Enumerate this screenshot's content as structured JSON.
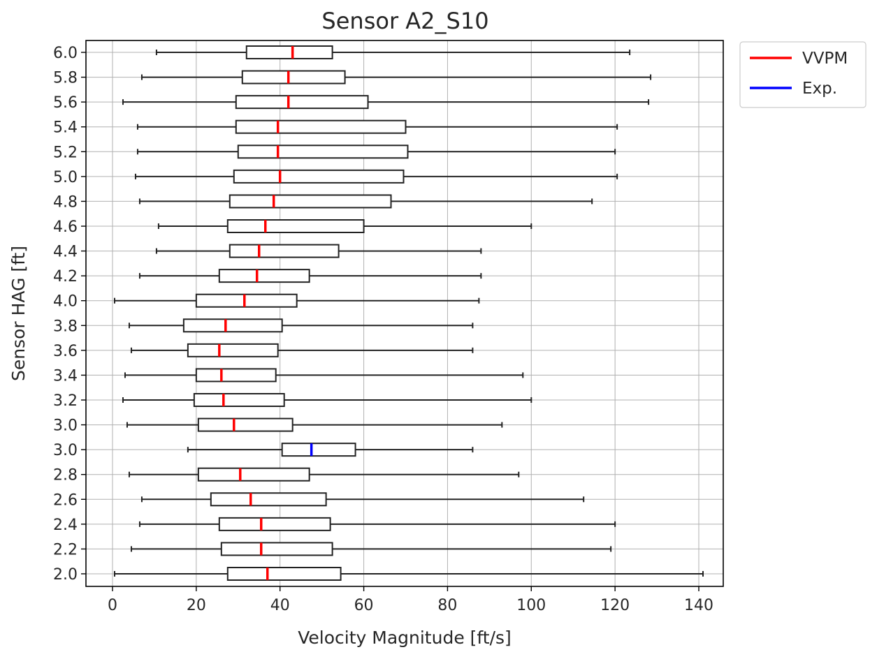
{
  "chart_data": {
    "type": "boxplot",
    "orientation": "horizontal",
    "title": "Sensor A2_S10",
    "xlabel": "Velocity Magnitude [ft/s]",
    "ylabel": "Sensor HAG [ft]",
    "xlim": [
      -7,
      148
    ],
    "x_ticks": [
      0,
      20,
      40,
      60,
      80,
      100,
      120,
      140
    ],
    "grid": true,
    "legend": {
      "placement": "outside-top-right",
      "entries": [
        {
          "name": "VVPM",
          "color": "#ff0000"
        },
        {
          "name": "Exp.",
          "color": "#0000ff"
        }
      ]
    },
    "categories": [
      "6.0",
      "5.8",
      "5.6",
      "5.4",
      "5.2",
      "5.0",
      "4.8",
      "4.6",
      "4.4",
      "4.2",
      "4.0",
      "3.8",
      "3.6",
      "3.4",
      "3.2",
      "3.0",
      "3.0",
      "2.8",
      "2.6",
      "2.4",
      "2.2",
      "2.0"
    ],
    "boxes": [
      {
        "label": "6.0",
        "series": "VVPM",
        "whisker_low": 10.5,
        "q1": 32.0,
        "median": 43.0,
        "q3": 52.5,
        "whisker_high": 123.5
      },
      {
        "label": "5.8",
        "series": "VVPM",
        "whisker_low": 7.0,
        "q1": 31.0,
        "median": 42.0,
        "q3": 55.5,
        "whisker_high": 128.5
      },
      {
        "label": "5.6",
        "series": "VVPM",
        "whisker_low": 2.5,
        "q1": 29.5,
        "median": 42.0,
        "q3": 61.0,
        "whisker_high": 128.0
      },
      {
        "label": "5.4",
        "series": "VVPM",
        "whisker_low": 6.0,
        "q1": 29.5,
        "median": 39.5,
        "q3": 70.0,
        "whisker_high": 120.5
      },
      {
        "label": "5.2",
        "series": "VVPM",
        "whisker_low": 6.0,
        "q1": 30.0,
        "median": 39.5,
        "q3": 70.5,
        "whisker_high": 120.0
      },
      {
        "label": "5.0",
        "series": "VVPM",
        "whisker_low": 5.5,
        "q1": 29.0,
        "median": 40.0,
        "q3": 69.5,
        "whisker_high": 120.5
      },
      {
        "label": "4.8",
        "series": "VVPM",
        "whisker_low": 6.5,
        "q1": 28.0,
        "median": 38.5,
        "q3": 66.5,
        "whisker_high": 114.5
      },
      {
        "label": "4.6",
        "series": "VVPM",
        "whisker_low": 11.0,
        "q1": 27.5,
        "median": 36.5,
        "q3": 60.0,
        "whisker_high": 100.0
      },
      {
        "label": "4.4",
        "series": "VVPM",
        "whisker_low": 10.5,
        "q1": 28.0,
        "median": 35.0,
        "q3": 54.0,
        "whisker_high": 88.0
      },
      {
        "label": "4.2",
        "series": "VVPM",
        "whisker_low": 6.5,
        "q1": 25.5,
        "median": 34.5,
        "q3": 47.0,
        "whisker_high": 88.0
      },
      {
        "label": "4.0",
        "series": "VVPM",
        "whisker_low": 0.5,
        "q1": 20.0,
        "median": 31.5,
        "q3": 44.0,
        "whisker_high": 87.5
      },
      {
        "label": "3.8",
        "series": "VVPM",
        "whisker_low": 4.0,
        "q1": 17.0,
        "median": 27.0,
        "q3": 40.5,
        "whisker_high": 86.0
      },
      {
        "label": "3.6",
        "series": "VVPM",
        "whisker_low": 4.5,
        "q1": 18.0,
        "median": 25.5,
        "q3": 39.5,
        "whisker_high": 86.0
      },
      {
        "label": "3.4",
        "series": "VVPM",
        "whisker_low": 3.0,
        "q1": 20.0,
        "median": 26.0,
        "q3": 39.0,
        "whisker_high": 98.0
      },
      {
        "label": "3.2",
        "series": "VVPM",
        "whisker_low": 2.5,
        "q1": 19.5,
        "median": 26.5,
        "q3": 41.0,
        "whisker_high": 100.0
      },
      {
        "label": "3.0",
        "series": "VVPM",
        "whisker_low": 3.5,
        "q1": 20.5,
        "median": 29.0,
        "q3": 43.0,
        "whisker_high": 93.0
      },
      {
        "label": "3.0",
        "series": "Exp.",
        "whisker_low": 18.0,
        "q1": 40.5,
        "median": 47.5,
        "q3": 58.0,
        "whisker_high": 86.0
      },
      {
        "label": "2.8",
        "series": "VVPM",
        "whisker_low": 4.0,
        "q1": 20.5,
        "median": 30.5,
        "q3": 47.0,
        "whisker_high": 97.0
      },
      {
        "label": "2.6",
        "series": "VVPM",
        "whisker_low": 7.0,
        "q1": 23.5,
        "median": 33.0,
        "q3": 51.0,
        "whisker_high": 112.5
      },
      {
        "label": "2.4",
        "series": "VVPM",
        "whisker_low": 6.5,
        "q1": 25.5,
        "median": 35.5,
        "q3": 52.0,
        "whisker_high": 120.0
      },
      {
        "label": "2.2",
        "series": "VVPM",
        "whisker_low": 4.5,
        "q1": 26.0,
        "median": 35.5,
        "q3": 52.5,
        "whisker_high": 119.0
      },
      {
        "label": "2.0",
        "series": "VVPM",
        "whisker_low": 0.5,
        "q1": 27.5,
        "median": 37.0,
        "q3": 54.5,
        "whisker_high": 141.0
      }
    ]
  }
}
